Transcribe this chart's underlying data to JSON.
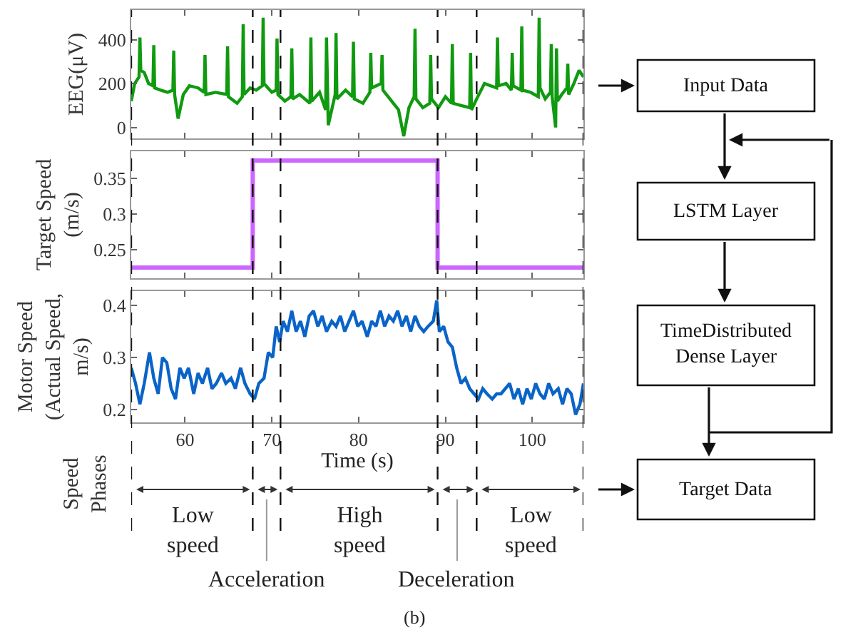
{
  "chart_data": [
    {
      "type": "line",
      "ylabel": "EEG(μV)",
      "color": "#109a10",
      "xlim": [
        53.8,
        105.9
      ],
      "xticks": [
        60,
        70,
        80,
        90,
        100
      ],
      "ylim": [
        -50,
        535
      ],
      "yticks": [
        0,
        200,
        400
      ],
      "tick_labels": "y",
      "x": [
        53.8,
        54.2,
        54.7,
        54.8,
        54.9,
        55.3,
        55.8,
        56.3,
        56.4,
        56.5,
        57.2,
        58.0,
        58.6,
        58.7,
        58.8,
        59.2,
        59.8,
        60.5,
        61.5,
        62.2,
        62.3,
        62.4,
        63.5,
        64.8,
        64.9,
        65.0,
        66.0,
        66.6,
        66.7,
        66.8,
        67.5,
        68.2,
        68.9,
        69.0,
        69.1,
        70.0,
        70.5,
        70.6,
        70.7,
        71.5,
        72.2,
        72.3,
        72.4,
        73.2,
        74.4,
        74.5,
        74.6,
        75.5,
        76.2,
        76.3,
        76.5,
        77.3,
        77.4,
        77.5,
        78.5,
        79.3,
        79.4,
        79.5,
        80.5,
        81.3,
        81.4,
        81.5,
        82.6,
        82.7,
        82.8,
        83.8,
        84.6,
        85.2,
        85.8,
        86.4,
        86.5,
        86.6,
        87.4,
        88.2,
        88.3,
        88.4,
        89.2,
        90.0,
        90.7,
        90.8,
        90.9,
        91.8,
        92.8,
        92.9,
        93.0,
        93.6,
        94.5,
        95.9,
        96.0,
        96.1,
        97.0,
        97.6,
        97.7,
        97.8,
        98.7,
        98.8,
        98.9,
        99.8,
        100.7,
        100.8,
        100.9,
        101.5,
        102.1,
        102.2,
        102.3,
        102.7,
        102.8,
        102.9,
        103.4,
        104.0,
        104.1,
        104.2,
        104.8,
        105.4,
        105.9
      ],
      "values": [
        120,
        200,
        230,
        410,
        260,
        250,
        200,
        190,
        375,
        180,
        170,
        160,
        170,
        350,
        150,
        40,
        150,
        190,
        180,
        160,
        330,
        150,
        160,
        150,
        370,
        140,
        110,
        140,
        470,
        150,
        180,
        170,
        190,
        500,
        200,
        160,
        170,
        405,
        150,
        120,
        140,
        360,
        130,
        150,
        110,
        410,
        120,
        160,
        80,
        410,
        10,
        150,
        430,
        130,
        170,
        140,
        390,
        130,
        110,
        160,
        340,
        180,
        200,
        330,
        170,
        120,
        80,
        -40,
        90,
        140,
        450,
        130,
        90,
        110,
        330,
        130,
        90,
        140,
        110,
        380,
        110,
        100,
        90,
        340,
        80,
        130,
        200,
        180,
        410,
        190,
        200,
        170,
        340,
        190,
        170,
        460,
        170,
        160,
        140,
        500,
        180,
        130,
        160,
        380,
        140,
        0,
        360,
        120,
        150,
        180,
        290,
        150,
        200,
        260,
        230
      ]
    },
    {
      "type": "step",
      "ylabel": "Target Speed (m/s)",
      "color": "#cc66ff",
      "xlim": [
        53.8,
        105.9
      ],
      "xticks": [
        60,
        70,
        80,
        90,
        100
      ],
      "ylim": [
        0.21,
        0.388
      ],
      "yticks": [
        0.25,
        0.3,
        0.35
      ],
      "tick_labels": "y",
      "x": [
        53.8,
        67.8,
        89.1,
        105.9
      ],
      "values": [
        0.225,
        0.375,
        0.225,
        0.225
      ]
    },
    {
      "type": "line",
      "xlabel": "Time (s)",
      "ylabel": "Motor Speed (Actual Speed, m/s)",
      "color": "#0a64c8",
      "xlim": [
        53.8,
        105.9
      ],
      "xticks": [
        60,
        70,
        80,
        90,
        100
      ],
      "ylim": [
        0.175,
        0.428
      ],
      "yticks": [
        0.2,
        0.3,
        0.4
      ],
      "x": [
        53.8,
        54.3,
        54.8,
        55.3,
        55.9,
        56.4,
        56.9,
        57.4,
        57.9,
        58.4,
        58.9,
        59.4,
        59.9,
        60.4,
        61.0,
        61.5,
        62.0,
        62.6,
        63.1,
        63.6,
        64.2,
        64.7,
        65.3,
        65.8,
        66.4,
        66.9,
        67.5,
        68.0,
        68.5,
        69.1,
        69.6,
        70.1,
        70.5,
        70.9,
        71.3,
        71.8,
        72.3,
        72.8,
        73.3,
        73.8,
        74.3,
        74.8,
        75.3,
        75.8,
        76.3,
        76.9,
        77.4,
        77.9,
        78.4,
        78.9,
        79.4,
        79.9,
        80.4,
        81.0,
        81.5,
        82.0,
        82.5,
        83.0,
        83.5,
        84.0,
        84.5,
        85.0,
        85.5,
        86.0,
        86.5,
        87.0,
        87.5,
        88.0,
        88.6,
        89.0,
        89.3,
        89.8,
        90.3,
        90.8,
        91.3,
        91.8,
        92.3,
        92.8,
        93.3,
        93.8,
        94.3,
        94.8,
        95.4,
        95.9,
        96.4,
        96.9,
        97.4,
        97.9,
        98.4,
        98.9,
        99.4,
        99.9,
        100.4,
        100.9,
        101.4,
        101.9,
        102.4,
        103.0,
        103.5,
        104.0,
        104.5,
        105.0,
        105.5,
        105.9
      ],
      "values": [
        0.28,
        0.25,
        0.21,
        0.25,
        0.31,
        0.26,
        0.23,
        0.3,
        0.29,
        0.24,
        0.22,
        0.28,
        0.26,
        0.28,
        0.23,
        0.27,
        0.25,
        0.28,
        0.24,
        0.25,
        0.27,
        0.25,
        0.26,
        0.24,
        0.28,
        0.25,
        0.23,
        0.22,
        0.25,
        0.26,
        0.31,
        0.3,
        0.36,
        0.33,
        0.37,
        0.35,
        0.39,
        0.35,
        0.37,
        0.34,
        0.38,
        0.39,
        0.36,
        0.38,
        0.35,
        0.37,
        0.36,
        0.38,
        0.35,
        0.37,
        0.39,
        0.36,
        0.37,
        0.34,
        0.37,
        0.36,
        0.39,
        0.36,
        0.38,
        0.37,
        0.39,
        0.36,
        0.38,
        0.35,
        0.38,
        0.36,
        0.35,
        0.36,
        0.37,
        0.41,
        0.35,
        0.36,
        0.33,
        0.32,
        0.28,
        0.25,
        0.26,
        0.24,
        0.23,
        0.22,
        0.24,
        0.23,
        0.22,
        0.23,
        0.23,
        0.24,
        0.25,
        0.22,
        0.24,
        0.21,
        0.24,
        0.22,
        0.25,
        0.23,
        0.22,
        0.25,
        0.23,
        0.24,
        0.21,
        0.24,
        0.23,
        0.19,
        0.21,
        0.25
      ],
      "ref_lines": [
        {
          "axis": "x",
          "value": 53.8,
          "line_style": "dashed"
        },
        {
          "axis": "x",
          "value": 67.8,
          "line_style": "dashed"
        },
        {
          "axis": "x",
          "value": 71.0,
          "line_style": "dashed"
        },
        {
          "axis": "x",
          "value": 89.1,
          "line_style": "dashed"
        },
        {
          "axis": "x",
          "value": 93.6,
          "line_style": "dashed"
        },
        {
          "axis": "x",
          "value": 105.9,
          "line_style": "dashed"
        }
      ]
    },
    {
      "type": "other",
      "ylabel": "Speed Phases",
      "annotations": [
        "Low speed",
        "Acceleration",
        "High speed",
        "Deceleration",
        "Low speed",
        "(b)"
      ]
    },
    {
      "type": "other",
      "annotations": [
        "Input Data",
        "LSTM Layer",
        "TimeDistributed Dense Layer",
        "Target Data"
      ]
    }
  ]
}
